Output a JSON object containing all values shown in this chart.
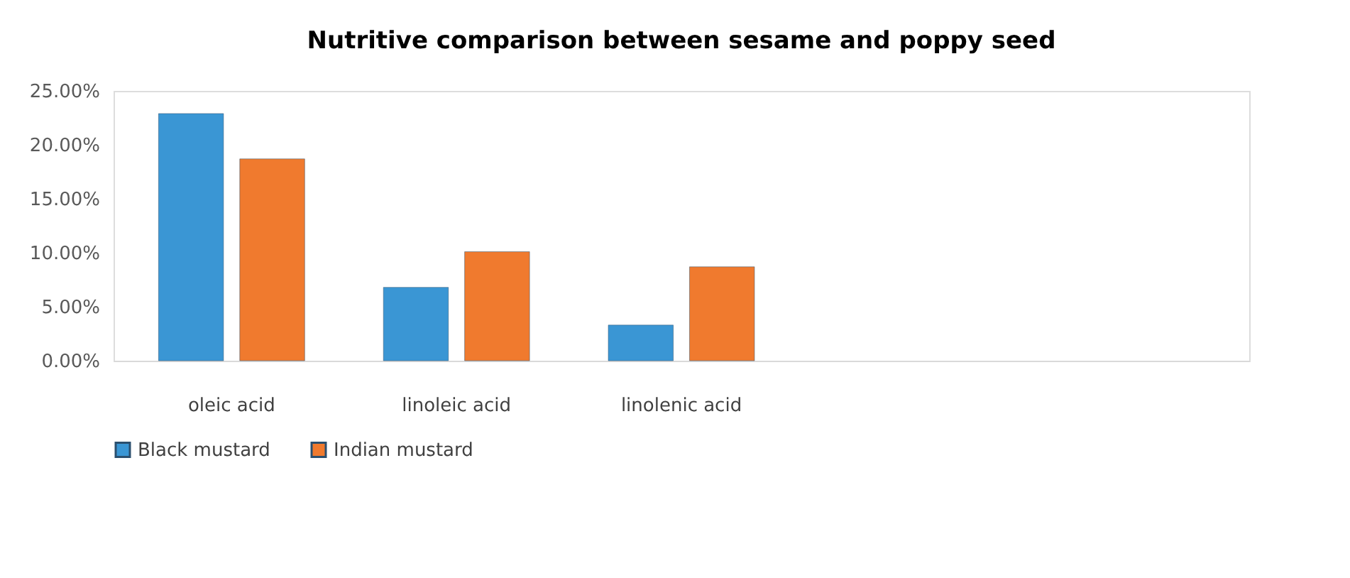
{
  "chart_data": {
    "type": "bar",
    "title": "Nutritive comparison between sesame and poppy seed",
    "categories": [
      "oleic acid",
      "linoleic acid",
      "linolenic acid",
      null,
      null
    ],
    "series": [
      {
        "name": "Black mustard",
        "color": "#3a96d4",
        "values": [
          22.9,
          6.8,
          3.3,
          null,
          null
        ]
      },
      {
        "name": "Indian mustard",
        "color": "#f07a2e",
        "values": [
          18.7,
          10.1,
          8.7,
          null,
          null
        ]
      }
    ],
    "ylim": [
      0,
      25
    ],
    "yticks": [
      {
        "value": 0,
        "label": "0.00%"
      },
      {
        "value": 5,
        "label": "5.00%"
      },
      {
        "value": 10,
        "label": "10.00%"
      },
      {
        "value": 15,
        "label": "15.00%"
      },
      {
        "value": 20,
        "label": "20.00%"
      },
      {
        "value": 25,
        "label": "25.00%"
      }
    ],
    "grid": false,
    "legend": "bottom"
  }
}
